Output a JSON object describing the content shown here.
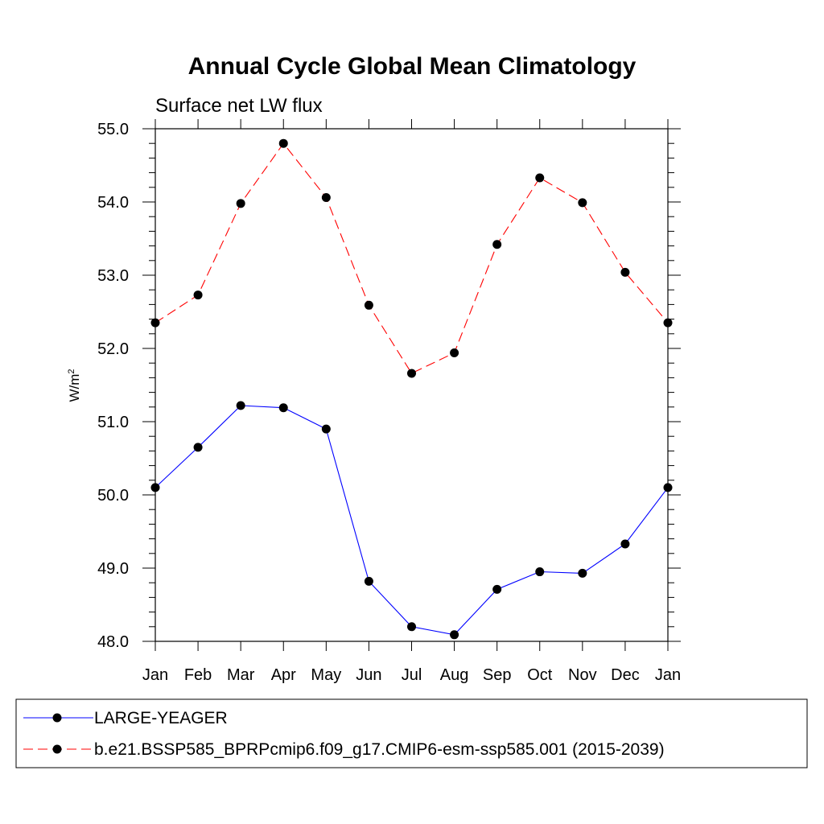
{
  "chart_data": {
    "type": "line",
    "title": "Annual Cycle Global Mean Climatology",
    "subtitle": "Surface net LW flux",
    "ylabel_base": "W/m",
    "ylabel_sup": "2",
    "xlabel": "",
    "categories": [
      "Jan",
      "Feb",
      "Mar",
      "Apr",
      "May",
      "Jun",
      "Jul",
      "Aug",
      "Sep",
      "Oct",
      "Nov",
      "Dec",
      "Jan"
    ],
    "ylim": [
      48.0,
      55.0
    ],
    "yticks": [
      "48.0",
      "49.0",
      "50.0",
      "51.0",
      "52.0",
      "53.0",
      "54.0",
      "55.0"
    ],
    "legend_position": "bottom",
    "series": [
      {
        "name": "LARGE-YEAGER",
        "color": "#0000ff",
        "dash": "solid",
        "values": [
          50.1,
          50.65,
          51.22,
          51.19,
          50.9,
          48.82,
          48.2,
          48.09,
          48.71,
          48.95,
          48.93,
          49.33,
          50.1
        ]
      },
      {
        "name": "b.e21.BSSP585_BPRPcmip6.f09_g17.CMIP6-esm-ssp585.001 (2015-2039)",
        "color": "#ff0000",
        "dash": "dashed",
        "values": [
          52.35,
          52.73,
          53.98,
          54.8,
          54.06,
          52.59,
          51.66,
          51.94,
          53.42,
          54.33,
          53.99,
          53.04,
          52.35
        ]
      }
    ]
  }
}
